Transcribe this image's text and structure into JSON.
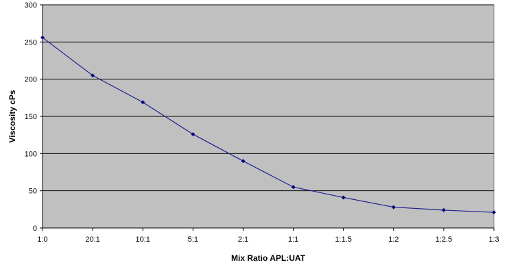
{
  "chart_data": {
    "type": "line",
    "title": "",
    "xlabel": "Mix Ratio APL:UAT",
    "ylabel": "Viscosity cPs",
    "categories": [
      "1:0",
      "20:1",
      "10:1",
      "5:1",
      "2:1",
      "1:1",
      "1:1.5",
      "1:2",
      "1:2.5",
      "1:3"
    ],
    "series": [
      {
        "values": [
          256,
          205,
          169,
          126,
          90,
          55,
          41,
          28,
          24,
          21
        ]
      }
    ],
    "ylim": [
      0,
      300
    ],
    "yticks": [
      "0",
      "50",
      "100",
      "150",
      "200",
      "250",
      "300"
    ],
    "grid": "horizontal",
    "legend": "none",
    "colors": {
      "plot_background": "#c0c0c0",
      "line": "#1f1f8f",
      "marker": "#00007a",
      "gridline": "#000000"
    }
  }
}
